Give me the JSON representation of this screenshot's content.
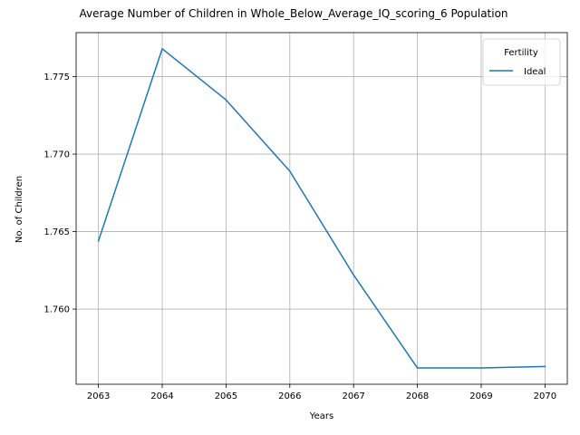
{
  "chart_data": {
    "type": "line",
    "title": "Average Number of Children in Whole_Below_Average_IQ_scoring_6 Population",
    "xlabel": "Years",
    "ylabel": "No. of Children",
    "x": [
      2063,
      2064,
      2065,
      2066,
      2067,
      2068,
      2069,
      2070
    ],
    "series": [
      {
        "name": "Ideal",
        "color": "#1f77b4",
        "values": [
          1.7644,
          1.7768,
          1.7735,
          1.7689,
          1.7622,
          1.7562,
          1.7562,
          1.7563
        ]
      }
    ],
    "xticks": [
      "2063",
      "2064",
      "2065",
      "2066",
      "2067",
      "2068",
      "2069",
      "2070"
    ],
    "yticks": [
      "1.760",
      "1.765",
      "1.770",
      "1.775"
    ],
    "ytick_values": [
      1.76,
      1.765,
      1.77,
      1.775
    ],
    "xlim": [
      2062.65,
      2070.35
    ],
    "ylim": [
      1.75515,
      1.77784
    ],
    "grid": true,
    "legend": {
      "title": "Fertility",
      "placement": "top-right"
    }
  }
}
